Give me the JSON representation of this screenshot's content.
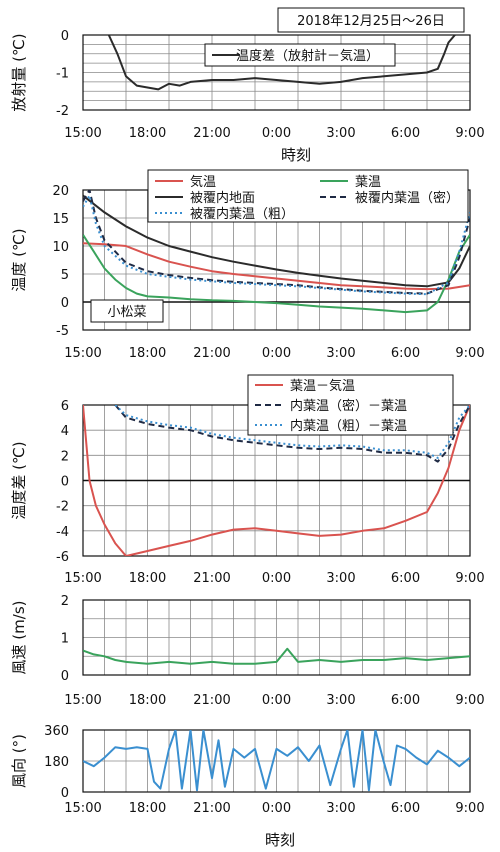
{
  "title": "2018年12月25日～26日",
  "x_ticks": [
    "15:00",
    "18:00",
    "21:00",
    "0:00",
    "3:00",
    "6:00",
    "9:00"
  ],
  "x_axis_label": "時刻",
  "chart_data": [
    {
      "type": "line",
      "ylabel": "放射量",
      "yunit": "(℃)",
      "ylim": [
        -2,
        0
      ],
      "yticks": [
        "0",
        "-1",
        "-2"
      ],
      "xlim_hours": [
        15,
        33
      ],
      "grid": true,
      "legend": "top-center",
      "series": [
        {
          "name": "温度差（放射計－気温）",
          "color": "#2b2b2b",
          "x": [
            16.2,
            16.6,
            17.0,
            17.5,
            18.0,
            18.5,
            19.0,
            19.5,
            20.0,
            21.0,
            22.0,
            23.0,
            24.0,
            25.0,
            26.0,
            27.0,
            28.0,
            29.0,
            30.0,
            31.0,
            31.5,
            31.8,
            32.0,
            32.3
          ],
          "values": [
            0.0,
            -0.5,
            -1.1,
            -1.35,
            -1.4,
            -1.45,
            -1.3,
            -1.35,
            -1.25,
            -1.2,
            -1.2,
            -1.15,
            -1.2,
            -1.25,
            -1.3,
            -1.25,
            -1.15,
            -1.1,
            -1.05,
            -1.0,
            -0.9,
            -0.5,
            -0.2,
            0.0
          ]
        }
      ]
    },
    {
      "type": "line",
      "ylabel": "温度",
      "yunit": "(℃)",
      "ylim": [
        -5,
        20
      ],
      "yticks": [
        "20",
        "15",
        "10",
        "5",
        "0",
        "-5"
      ],
      "annotation": "小松菜",
      "grid": true,
      "legend": "top",
      "series": [
        {
          "name": "気温",
          "color": "#d9534f",
          "dash": "solid",
          "x": [
            15,
            16,
            17,
            18,
            19,
            20,
            21,
            22,
            23,
            24,
            25,
            26,
            27,
            28,
            29,
            30,
            31,
            32,
            33
          ],
          "values": [
            10.5,
            10.3,
            10.0,
            8.5,
            7.2,
            6.3,
            5.5,
            5.0,
            4.6,
            4.2,
            3.8,
            3.4,
            3.0,
            2.8,
            2.6,
            2.4,
            2.3,
            2.4,
            3.0
          ]
        },
        {
          "name": "葉温",
          "color": "#3aa35c",
          "dash": "solid",
          "x": [
            15,
            15.5,
            16,
            16.5,
            17,
            17.5,
            18,
            19,
            20,
            21,
            22,
            23,
            24,
            25,
            26,
            27,
            28,
            29,
            30,
            31,
            31.5,
            32,
            32.5,
            33
          ],
          "values": [
            12.0,
            9.0,
            6.0,
            4.0,
            2.5,
            1.5,
            1.0,
            0.8,
            0.5,
            0.3,
            0.2,
            0.0,
            -0.2,
            -0.5,
            -0.8,
            -1.0,
            -1.2,
            -1.5,
            -1.8,
            -1.5,
            0.0,
            4.0,
            9.0,
            12.0
          ]
        },
        {
          "name": "被覆内地面",
          "color": "#2b2b2b",
          "dash": "solid",
          "x": [
            15,
            16,
            17,
            18,
            19,
            20,
            21,
            22,
            23,
            24,
            25,
            26,
            27,
            28,
            29,
            30,
            31,
            32,
            32.5,
            33
          ],
          "values": [
            19.0,
            16.0,
            13.5,
            11.5,
            10.0,
            9.0,
            8.0,
            7.2,
            6.5,
            5.8,
            5.2,
            4.7,
            4.2,
            3.8,
            3.4,
            3.0,
            2.8,
            3.5,
            6.0,
            10.0
          ]
        },
        {
          "name": "被覆内葉温（密）",
          "color": "#1f2a44",
          "dash": "6,4",
          "x": [
            15,
            15.3,
            15.6,
            16,
            17,
            18,
            19,
            20,
            21,
            22,
            23,
            24,
            25,
            26,
            27,
            28,
            29,
            30,
            31,
            32,
            32.5,
            33
          ],
          "values": [
            18.0,
            20.0,
            15.0,
            11.0,
            7.0,
            5.5,
            4.8,
            4.3,
            3.9,
            3.6,
            3.4,
            3.2,
            3.0,
            2.6,
            2.3,
            2.0,
            1.8,
            1.6,
            1.5,
            3.0,
            8.0,
            15.0
          ]
        },
        {
          "name": "被覆内葉温（粗）",
          "color": "#3a8fd0",
          "dash": "2,3",
          "x": [
            15,
            15.3,
            15.6,
            16,
            17,
            18,
            19,
            20,
            21,
            22,
            23,
            24,
            25,
            26,
            27,
            28,
            29,
            30,
            31,
            32,
            32.5,
            33
          ],
          "values": [
            17.0,
            19.0,
            14.0,
            10.0,
            6.5,
            5.0,
            4.5,
            4.0,
            3.7,
            3.4,
            3.2,
            3.0,
            2.8,
            2.5,
            2.2,
            1.9,
            1.7,
            1.5,
            1.4,
            3.5,
            9.0,
            16.0
          ]
        }
      ]
    },
    {
      "type": "line",
      "ylabel": "温度差",
      "yunit": "(℃)",
      "ylim": [
        -6,
        6
      ],
      "yticks": [
        "6",
        "4",
        "2",
        "0",
        "-2",
        "-4",
        "-6"
      ],
      "grid": true,
      "legend": "top",
      "series": [
        {
          "name": "葉温－気温",
          "color": "#d9534f",
          "dash": "solid",
          "x": [
            15,
            15.3,
            15.6,
            16,
            16.5,
            17,
            17.5,
            18,
            19,
            20,
            21,
            22,
            23,
            24,
            25,
            26,
            27,
            28,
            29,
            30,
            31,
            31.5,
            32,
            32.5,
            33
          ],
          "values": [
            6.0,
            0.0,
            -2.0,
            -3.5,
            -5.0,
            -6.0,
            -5.8,
            -5.6,
            -5.2,
            -4.8,
            -4.3,
            -3.9,
            -3.8,
            -4.0,
            -4.2,
            -4.4,
            -4.3,
            -4.0,
            -3.8,
            -3.2,
            -2.5,
            -1.0,
            1.0,
            4.0,
            6.0
          ]
        },
        {
          "name": "内葉温（密）－葉温",
          "color": "#1f2a44",
          "dash": "6,4",
          "x": [
            16.5,
            17,
            18,
            19,
            20,
            21,
            22,
            23,
            24,
            25,
            26,
            27,
            28,
            29,
            30,
            31,
            31.5,
            32,
            32.5,
            33
          ],
          "values": [
            6.0,
            5.0,
            4.5,
            4.2,
            4.0,
            3.5,
            3.2,
            3.0,
            2.8,
            2.6,
            2.5,
            2.6,
            2.5,
            2.2,
            2.2,
            2.0,
            1.5,
            2.5,
            4.5,
            6.0
          ]
        },
        {
          "name": "内葉温（粗）－葉温",
          "color": "#3a8fd0",
          "dash": "2,3",
          "x": [
            16.5,
            17,
            18,
            19,
            20,
            21,
            22,
            23,
            24,
            25,
            26,
            27,
            28,
            29,
            30,
            31,
            31.5,
            32,
            32.5,
            33
          ],
          "values": [
            6.0,
            5.2,
            4.7,
            4.4,
            4.2,
            3.7,
            3.4,
            3.2,
            3.0,
            2.8,
            2.7,
            2.8,
            2.7,
            2.4,
            2.4,
            2.2,
            1.8,
            3.0,
            5.0,
            6.0
          ]
        }
      ]
    },
    {
      "type": "line",
      "ylabel": "風速",
      "yunit": "(m/s)",
      "ylim": [
        0,
        2
      ],
      "yticks": [
        "2",
        "1",
        "0"
      ],
      "grid": true,
      "series": [
        {
          "name": "",
          "color": "#3aa35c",
          "x": [
            15,
            15.5,
            16,
            16.5,
            17,
            18,
            19,
            20,
            21,
            22,
            23,
            24,
            24.5,
            25,
            26,
            27,
            28,
            29,
            30,
            31,
            32,
            33
          ],
          "values": [
            0.65,
            0.55,
            0.5,
            0.4,
            0.35,
            0.3,
            0.35,
            0.3,
            0.35,
            0.3,
            0.3,
            0.35,
            0.7,
            0.35,
            0.4,
            0.35,
            0.4,
            0.4,
            0.45,
            0.4,
            0.45,
            0.5
          ]
        }
      ]
    },
    {
      "type": "line",
      "ylabel": "風向",
      "yunit": "(°)",
      "ylim": [
        0,
        360
      ],
      "yticks": [
        "360",
        "180",
        "0"
      ],
      "grid": true,
      "series": [
        {
          "name": "",
          "color": "#3a8fd0",
          "x": [
            15,
            15.5,
            16,
            16.5,
            17,
            17.5,
            18,
            18.3,
            18.6,
            19,
            19.3,
            19.6,
            20,
            20.3,
            20.6,
            21,
            21.3,
            21.6,
            22,
            22.5,
            23,
            23.5,
            24,
            24.5,
            25,
            25.5,
            26,
            26.5,
            27,
            27.3,
            27.6,
            28,
            28.3,
            28.6,
            29,
            29.3,
            29.6,
            30,
            30.5,
            31,
            31.5,
            32,
            32.5,
            33
          ],
          "values": [
            180,
            150,
            200,
            260,
            250,
            260,
            250,
            60,
            20,
            250,
            360,
            20,
            360,
            10,
            360,
            80,
            300,
            30,
            250,
            200,
            250,
            20,
            250,
            210,
            260,
            180,
            270,
            40,
            250,
            360,
            30,
            360,
            10,
            360,
            170,
            40,
            270,
            250,
            200,
            160,
            240,
            200,
            150,
            200
          ]
        }
      ]
    }
  ]
}
